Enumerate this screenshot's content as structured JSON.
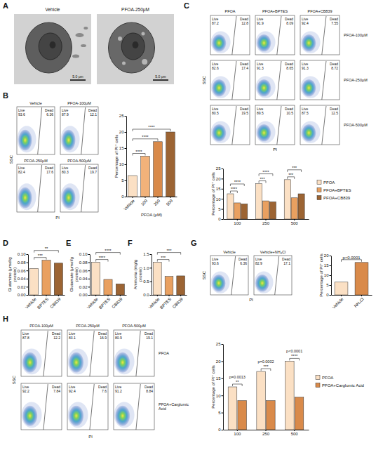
{
  "chart_data": [
    {
      "type": "bar",
      "categories": [
        "Vehicle",
        "100",
        "250",
        "500"
      ],
      "values": [
        6.5,
        12.5,
        17,
        20
      ],
      "colors": [
        "#fbe0c4",
        "#f2b27a",
        "#d98a4a",
        "#9c6433"
      ],
      "ylim": [
        0,
        25
      ],
      "yticks": [
        0,
        5,
        10,
        15,
        20,
        25
      ],
      "y_label": "Percentage of PI⁺ cells",
      "x_label": "PFOA (μM)",
      "annotations": [
        {
          "text": "****",
          "between": [
            "Vehicle",
            "100"
          ]
        },
        {
          "text": "****",
          "between": [
            "Vehicle",
            "250"
          ]
        },
        {
          "text": "****",
          "between": [
            "Vehicle",
            "500"
          ]
        }
      ]
    },
    {
      "type": "bar",
      "categories": [
        "100",
        "250",
        "500"
      ],
      "series": [
        {
          "name": "PFOA",
          "color": "#fbe0c4",
          "values": [
            12.5,
            17.5,
            19.5
          ]
        },
        {
          "name": "PFOA+BPTES",
          "color": "#e9a060",
          "values": [
            8,
            9,
            10.5
          ]
        },
        {
          "name": "PFOA+CB839",
          "color": "#9c6433",
          "values": [
            7.5,
            8.5,
            12.5
          ]
        }
      ],
      "ylim": [
        0,
        25
      ],
      "yticks": [
        0,
        5,
        10,
        15,
        20,
        25
      ],
      "y_label": "Percentage of PI⁺ cells",
      "legend": "right",
      "annotations": [
        {
          "text": "****",
          "category": "100",
          "between": [
            "PFOA",
            "PFOA+BPTES"
          ]
        },
        {
          "text": "****",
          "category": "100",
          "between": [
            "PFOA",
            "PFOA+CB839"
          ]
        },
        {
          "text": "***",
          "category": "250",
          "between": [
            "PFOA",
            "PFOA+BPTES"
          ]
        },
        {
          "text": "****",
          "category": "250",
          "between": [
            "PFOA",
            "PFOA+CB839"
          ]
        },
        {
          "text": "***",
          "category": "500",
          "between": [
            "PFOA",
            "PFOA+BPTES"
          ]
        },
        {
          "text": "***",
          "category": "500",
          "between": [
            "PFOA",
            "PFOA+CB839"
          ]
        }
      ]
    },
    {
      "type": "bar",
      "categories": [
        "Vehicle",
        "BPTES",
        "CB839"
      ],
      "values": [
        0.065,
        0.085,
        0.078
      ],
      "colors": [
        "#fbe0c4",
        "#e9a060",
        "#9c6433"
      ],
      "ylim": [
        0,
        0.1
      ],
      "yticks": [
        {
          "value": 0,
          "label": "0.00"
        },
        0.02,
        0.04,
        0.06,
        0.08,
        {
          "value": 0.1,
          "label": "0.10"
        }
      ],
      "y_label": "Glutamine (μmol/g protein)",
      "annotations": [
        {
          "text": "***",
          "between": [
            "Vehicle",
            "BPTES"
          ]
        },
        {
          "text": "**",
          "between": [
            "Vehicle",
            "CB839"
          ]
        }
      ]
    },
    {
      "type": "bar",
      "categories": [
        "Vehicle",
        "BPTES",
        "CB839"
      ],
      "values": [
        0.08,
        0.038,
        0.027
      ],
      "colors": [
        "#fbe0c4",
        "#e9a060",
        "#9c6433"
      ],
      "ylim": [
        0,
        0.1
      ],
      "yticks": [
        {
          "value": 0,
          "label": "0.00"
        },
        0.02,
        0.04,
        0.06,
        0.08,
        {
          "value": 0.1,
          "label": "0.10"
        }
      ],
      "y_label": "Glutamate (μmol/g protein)",
      "annotations": [
        {
          "text": "****",
          "between": [
            "Vehicle",
            "BPTES"
          ]
        },
        {
          "text": "****",
          "between": [
            "Vehicle",
            "CB839"
          ]
        }
      ]
    },
    {
      "type": "bar",
      "categories": [
        "Vehicle",
        "BPTES",
        "CB839"
      ],
      "values": [
        1.2,
        0.68,
        0.7
      ],
      "colors": [
        "#fbe0c4",
        "#e9a060",
        "#9c6433"
      ],
      "ylim": [
        0,
        1.5
      ],
      "yticks": [
        {
          "value": 0,
          "label": "0.0"
        },
        0.5,
        {
          "value": 1,
          "label": "1.0"
        },
        1.5
      ],
      "y_label": "Ammonia (mg/g protein)",
      "annotations": [
        {
          "text": "***",
          "between": [
            "Vehicle",
            "BPTES"
          ]
        },
        {
          "text": "***",
          "between": [
            "Vehicle",
            "CB839"
          ]
        }
      ]
    },
    {
      "type": "bar",
      "categories": [
        "Vehicle",
        "NH₄Cl"
      ],
      "values": [
        6.5,
        16.5
      ],
      "colors": [
        "#fbe0c4",
        "#d98a4a"
      ],
      "ylim": [
        0,
        20
      ],
      "yticks": [
        0,
        5,
        10,
        15,
        20
      ],
      "y_label": "Percentage of PI⁺ cells",
      "annotations": [
        {
          "text": "p<0.0001",
          "between": [
            "Vehicle",
            "NH₄Cl"
          ]
        }
      ]
    },
    {
      "type": "bar",
      "categories": [
        "100",
        "250",
        "500"
      ],
      "series": [
        {
          "name": "PFOA",
          "color": "#fbe0c4",
          "values": [
            12.5,
            17,
            20
          ]
        },
        {
          "name": "PFOA+Carglumic Acid",
          "color": "#d98a4a",
          "values": [
            8.5,
            8.5,
            9.5
          ]
        }
      ],
      "ylim": [
        0,
        25
      ],
      "yticks": [
        0,
        5,
        10,
        15,
        20,
        25
      ],
      "y_label": "Percentage of PI⁺ cells",
      "legend": "right",
      "annotations": [
        {
          "text": "**",
          "p": "p=0.0013",
          "category": "100",
          "between": [
            "PFOA",
            "PFOA+Carglumic Acid"
          ]
        },
        {
          "text": "***",
          "p": "p=0.0002",
          "category": "250",
          "between": [
            "PFOA",
            "PFOA+Carglumic Acid"
          ]
        },
        {
          "text": "****",
          "p": "p<0.0001",
          "category": "500",
          "between": [
            "PFOA",
            "PFOA+Carglumic Acid"
          ]
        }
      ]
    }
  ],
  "figure": {
    "flow_axes": {
      "x": "PI",
      "y": "SSC",
      "live": "Live",
      "dead": "Dead"
    },
    "A": {
      "letter": "A",
      "images": [
        {
          "label": "Vehicle",
          "scale_bar": "5.0 μm"
        },
        {
          "label": "PFOA-250μM",
          "scale_bar": "5.0 μm"
        }
      ]
    },
    "B": {
      "letter": "B",
      "plots": [
        {
          "title": "Vehicle",
          "live": 93.6,
          "dead": 6.36
        },
        {
          "title": "PFOA-100μM",
          "live": 87.9,
          "dead": 12.1
        },
        {
          "title": "PFOA-250μM",
          "live": 82.4,
          "dead": 17.6
        },
        {
          "title": "PFOA-500μM",
          "live": 80.3,
          "dead": 19.7
        }
      ]
    },
    "C": {
      "letter": "C",
      "columns": [
        "PFOA",
        "PFOA+BPTES",
        "PFOA+CB839"
      ],
      "rows": [
        "PFOA-100μM",
        "PFOA-250μM",
        "PFOA-500μM"
      ],
      "plots": [
        [
          {
            "live": 87.2,
            "dead": 12.8
          },
          {
            "live": 91.9,
            "dead": 8.09
          },
          {
            "live": 92.4,
            "dead": 7.55
          }
        ],
        [
          {
            "live": 82.6,
            "dead": 17.4
          },
          {
            "live": 91.3,
            "dead": 8.65
          },
          {
            "live": 91.3,
            "dead": 8.72
          }
        ],
        [
          {
            "live": 80.5,
            "dead": 19.5
          },
          {
            "live": 89.5,
            "dead": 10.5
          },
          {
            "live": 87.5,
            "dead": 12.5
          }
        ]
      ]
    },
    "D": {
      "letter": "D"
    },
    "E": {
      "letter": "E"
    },
    "F": {
      "letter": "F"
    },
    "G": {
      "letter": "G",
      "plots": [
        {
          "title": "Vehicle",
          "live": 93.6,
          "dead": 6.36
        },
        {
          "title": "Vehicle+NH₄Cl",
          "live": 82.9,
          "dead": 17.1
        }
      ]
    },
    "H": {
      "letter": "H",
      "columns": [
        "PFOA-100μM",
        "PFOA-250μM",
        "PFOA-500μM"
      ],
      "rows": [
        "PFOA",
        "PFOA+Carglumic Acid"
      ],
      "plots": [
        [
          {
            "live": 87.8,
            "dead": 12.2
          },
          {
            "live": 83.1,
            "dead": 16.9
          },
          {
            "live": 80.9,
            "dead": 19.1
          }
        ],
        [
          {
            "live": 92.2,
            "dead": 7.84
          },
          {
            "live": 92.4,
            "dead": 7.6
          },
          {
            "live": 91.2,
            "dead": 8.84
          }
        ]
      ]
    }
  }
}
